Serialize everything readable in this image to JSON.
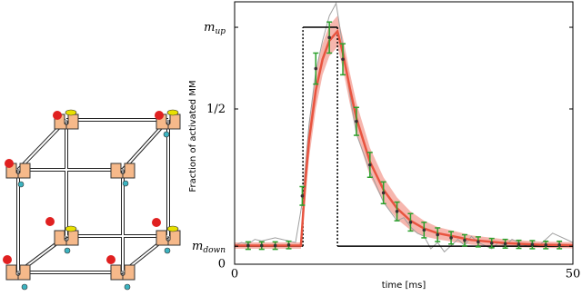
{
  "chart_data": {
    "type": "line",
    "xlabel": "time [ms]",
    "ylabel": "Fraction of activated MM",
    "xlim": [
      0,
      50
    ],
    "xticks": [
      0,
      50
    ],
    "ylim": [
      0,
      0.845
    ],
    "yticks": [
      0,
      {
        "value": 0.058,
        "label": "m",
        "subscript": "down"
      },
      {
        "value": 0.5,
        "label": "1/2"
      },
      {
        "value": 0.763,
        "label": "m",
        "subscript": "up"
      }
    ],
    "series": [
      {
        "kind": "band",
        "color": "#f4a49a",
        "x": [
          0,
          9.8,
          10.5,
          11,
          12,
          13,
          14,
          15.2,
          16,
          17,
          18,
          20,
          22,
          24,
          26,
          28,
          30,
          35,
          40,
          45,
          50
        ],
        "lower": [
          0.05,
          0.05,
          0.22,
          0.34,
          0.5,
          0.61,
          0.67,
          0.7,
          0.63,
          0.52,
          0.42,
          0.285,
          0.2,
          0.145,
          0.11,
          0.09,
          0.08,
          0.063,
          0.056,
          0.053,
          0.051
        ],
        "upper": [
          0.07,
          0.07,
          0.34,
          0.46,
          0.62,
          0.71,
          0.77,
          0.8,
          0.73,
          0.62,
          0.52,
          0.375,
          0.28,
          0.215,
          0.17,
          0.14,
          0.12,
          0.093,
          0.08,
          0.073,
          0.071
        ]
      },
      {
        "kind": "line",
        "color": "#a0a0a0",
        "x": [
          0,
          1,
          2,
          3,
          4,
          5,
          6,
          7,
          8,
          9,
          10,
          11,
          12,
          13,
          14,
          15,
          16,
          17,
          18,
          19,
          20,
          21,
          22,
          23,
          24,
          25,
          26,
          27,
          28,
          29,
          30,
          31,
          32,
          33,
          34,
          35,
          36,
          37,
          38,
          39,
          40,
          41,
          42,
          43,
          44,
          45,
          46,
          47,
          48,
          49,
          50
        ],
        "values": [
          0.06,
          0.07,
          0.065,
          0.08,
          0.075,
          0.08,
          0.085,
          0.08,
          0.075,
          0.07,
          0.2,
          0.45,
          0.62,
          0.72,
          0.8,
          0.84,
          0.7,
          0.55,
          0.42,
          0.36,
          0.3,
          0.25,
          0.2,
          0.17,
          0.14,
          0.15,
          0.12,
          0.1,
          0.09,
          0.05,
          0.07,
          0.04,
          0.06,
          0.08,
          0.06,
          0.09,
          0.07,
          0.06,
          0.05,
          0.07,
          0.06,
          0.08,
          0.07,
          0.06,
          0.07,
          0.06,
          0.08,
          0.1,
          0.09,
          0.08,
          0.07
        ]
      },
      {
        "kind": "step",
        "color": "#000000",
        "x": [
          0,
          10.1,
          10.1,
          15.2,
          15.2,
          50
        ],
        "values": [
          0.058,
          0.058,
          0.763,
          0.763,
          0.058,
          0.058
        ]
      },
      {
        "kind": "line",
        "color": "#e8543f",
        "x": [
          0,
          9.8,
          10.5,
          11,
          12,
          13,
          14,
          15.2,
          16,
          17,
          18,
          20,
          22,
          24,
          26,
          28,
          30,
          35,
          40,
          45,
          50
        ],
        "values": [
          0.06,
          0.06,
          0.28,
          0.4,
          0.56,
          0.66,
          0.72,
          0.75,
          0.68,
          0.57,
          0.47,
          0.33,
          0.24,
          0.18,
          0.14,
          0.115,
          0.1,
          0.078,
          0.068,
          0.063,
          0.061
        ]
      },
      {
        "kind": "errorbar",
        "color": "#2ca02c",
        "x": [
          2,
          4,
          6,
          8,
          10,
          12,
          14,
          16,
          18,
          20,
          22,
          24,
          26,
          28,
          30,
          32,
          34,
          36,
          38,
          40,
          42,
          44,
          46,
          48
        ],
        "values": [
          0.06,
          0.06,
          0.06,
          0.062,
          0.22,
          0.63,
          0.73,
          0.66,
          0.46,
          0.32,
          0.23,
          0.17,
          0.135,
          0.11,
          0.095,
          0.085,
          0.077,
          0.072,
          0.068,
          0.066,
          0.064,
          0.063,
          0.062,
          0.062
        ],
        "errors": [
          0.012,
          0.012,
          0.012,
          0.012,
          0.03,
          0.05,
          0.05,
          0.05,
          0.045,
          0.04,
          0.035,
          0.03,
          0.028,
          0.025,
          0.022,
          0.02,
          0.018,
          0.016,
          0.015,
          0.014,
          0.013,
          0.013,
          0.012,
          0.012
        ]
      }
    ]
  }
}
